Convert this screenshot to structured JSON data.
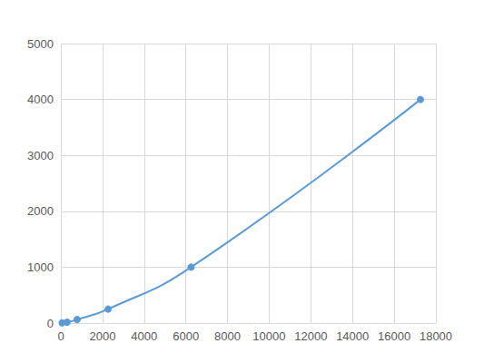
{
  "chart_data": {
    "type": "line",
    "x": [
      60,
      300,
      780,
      2270,
      6250,
      17260
    ],
    "values": [
      3.9,
      15.6,
      62.5,
      250,
      1000,
      4000
    ],
    "color": "#5b9bd5",
    "marker": "circle",
    "line_style": "smooth",
    "xlim": [
      0,
      18000
    ],
    "xticks": [
      0,
      2000,
      4000,
      6000,
      8000,
      10000,
      12000,
      14000,
      16000,
      18000
    ],
    "ylim": [
      0,
      5000
    ],
    "yticks": [
      0,
      1000,
      2000,
      3000,
      4000,
      5000
    ],
    "grid": true
  }
}
